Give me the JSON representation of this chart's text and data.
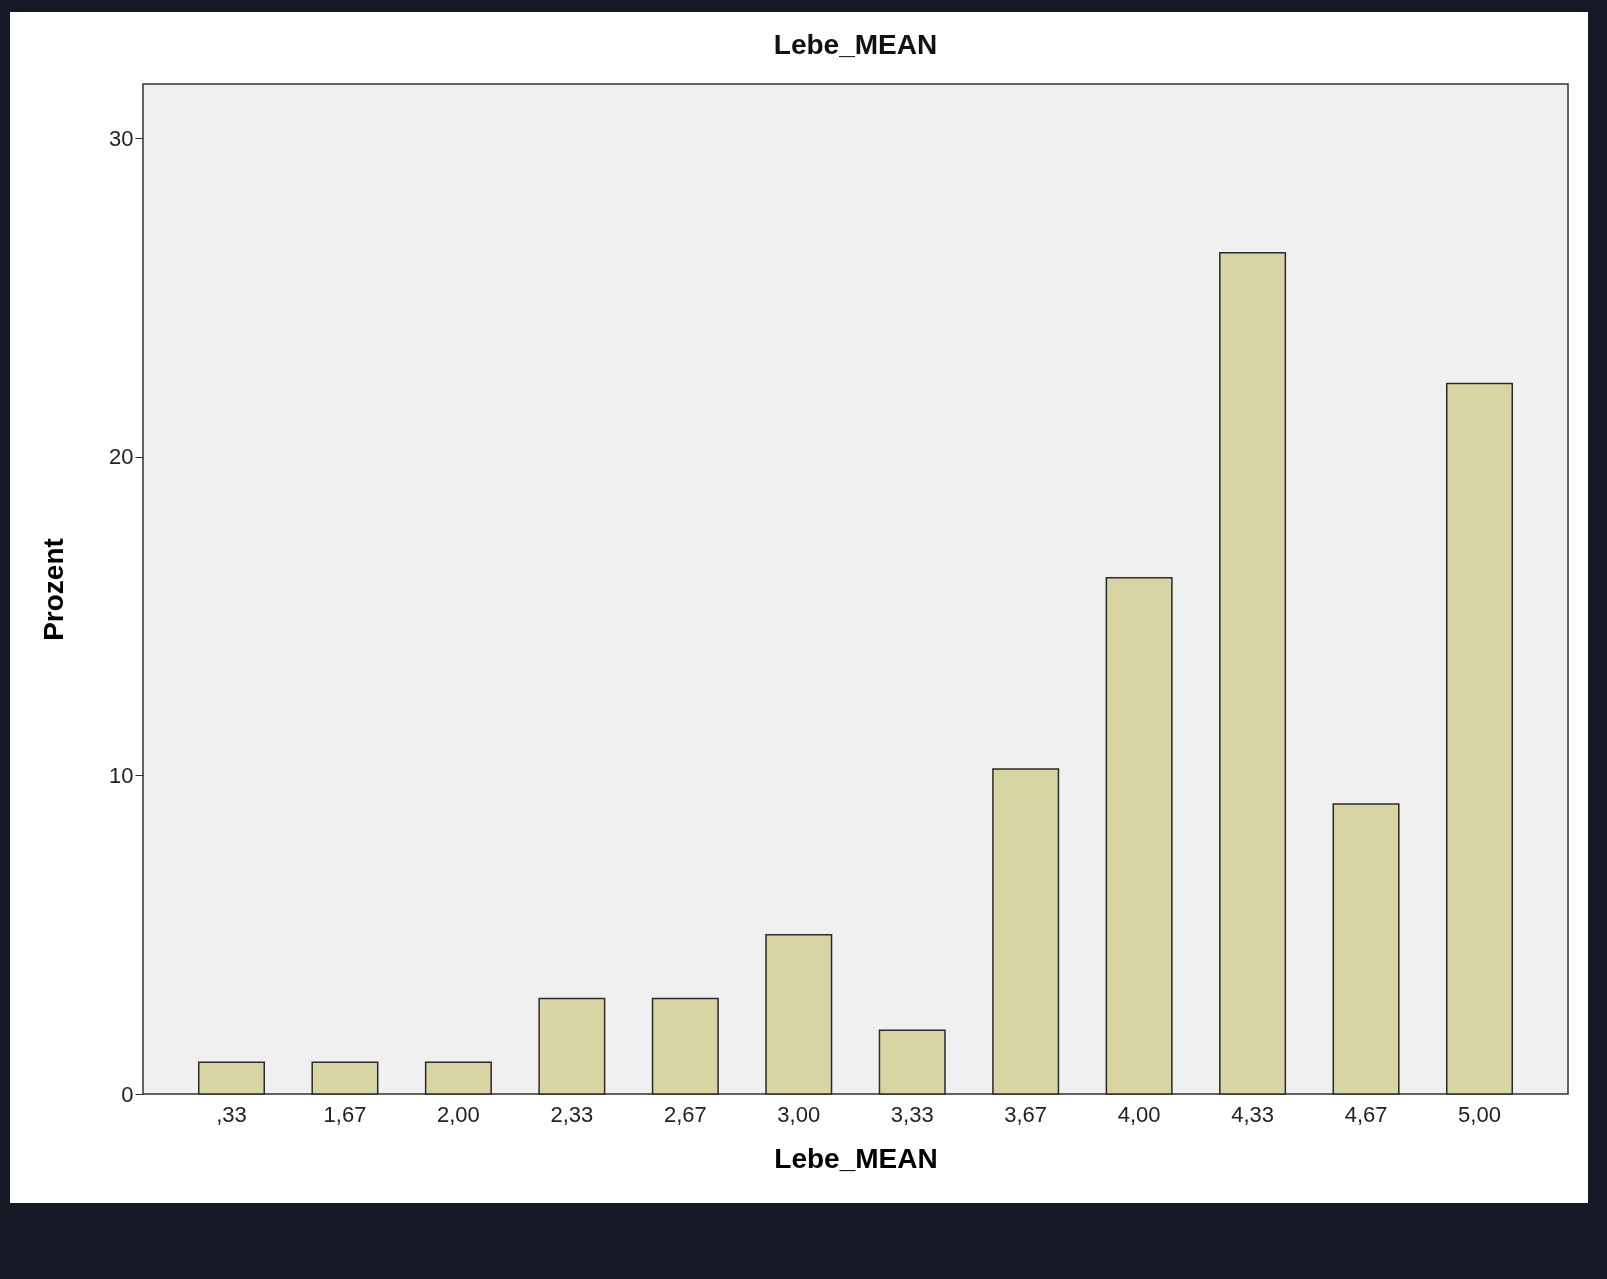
{
  "chart_data": {
    "type": "bar",
    "title": "Lebe_MEAN",
    "xlabel": "Lebe_MEAN",
    "ylabel": "Prozent",
    "categories": [
      ",33",
      "1,67",
      "2,00",
      "2,33",
      "2,67",
      "3,00",
      "3,33",
      "3,67",
      "4,00",
      "4,33",
      "4,67",
      "5,00"
    ],
    "values": [
      1,
      1,
      1,
      3,
      3,
      5,
      2,
      10.2,
      16.2,
      26.4,
      9.1,
      22.3
    ],
    "color": "#d8d5a5",
    "ylim": [
      0,
      31.7
    ],
    "yticks": [
      0,
      10,
      20,
      30
    ],
    "grid": false
  }
}
